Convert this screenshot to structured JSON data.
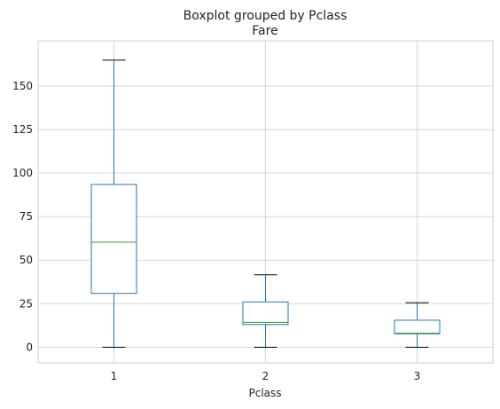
{
  "chart_data": {
    "type": "boxplot",
    "suptitle": "Boxplot grouped by Pclass",
    "title": "Fare",
    "xlabel": "Pclass",
    "ylabel": "",
    "categories": [
      "1",
      "2",
      "3"
    ],
    "yticks": [
      0,
      25,
      50,
      75,
      100,
      125,
      150
    ],
    "ylim": [
      -9,
      176
    ],
    "grid": true,
    "boxes": [
      {
        "category": "1",
        "whisker_low": 0,
        "q1": 30.9,
        "median": 60.3,
        "q3": 93.5,
        "whisker_high": 164.9
      },
      {
        "category": "2",
        "whisker_low": 0,
        "q1": 13.0,
        "median": 14.25,
        "q3": 26.0,
        "whisker_high": 41.6
      },
      {
        "category": "3",
        "whisker_low": 0,
        "q1": 7.75,
        "median": 8.05,
        "q3": 15.5,
        "whisker_high": 25.5
      }
    ],
    "colors": {
      "box": "#1f77b4",
      "median": "#2ca02c",
      "whisker_cap": "#000000",
      "grid": "#cccccc",
      "spine": "#cccccc"
    }
  }
}
